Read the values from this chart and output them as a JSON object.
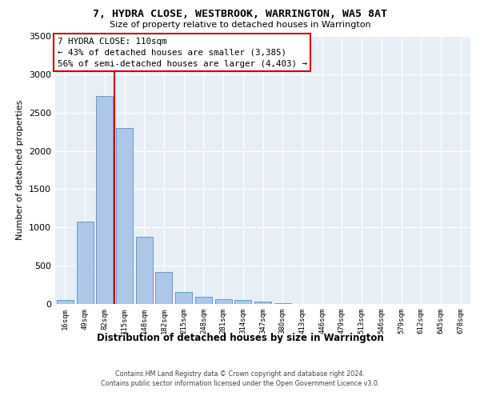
{
  "title": "7, HYDRA CLOSE, WESTBROOK, WARRINGTON, WA5 8AT",
  "subtitle": "Size of property relative to detached houses in Warrington",
  "xlabel": "Distribution of detached houses by size in Warrington",
  "ylabel": "Number of detached properties",
  "categories": [
    "16sqm",
    "49sqm",
    "82sqm",
    "115sqm",
    "148sqm",
    "182sqm",
    "215sqm",
    "248sqm",
    "281sqm",
    "314sqm",
    "347sqm",
    "380sqm",
    "413sqm",
    "446sqm",
    "479sqm",
    "513sqm",
    "546sqm",
    "579sqm",
    "612sqm",
    "645sqm",
    "678sqm"
  ],
  "values": [
    50,
    1080,
    2720,
    2300,
    880,
    420,
    160,
    90,
    60,
    50,
    30,
    10,
    5,
    2,
    1,
    0,
    0,
    0,
    0,
    0,
    0
  ],
  "bar_color": "#aec6e8",
  "bar_edge_color": "#5a8fc2",
  "line_color": "#cc0000",
  "anno_edge_color": "#cc0000",
  "anno_bg": "#ffffff",
  "ylim_max": 3500,
  "yticks": [
    0,
    500,
    1000,
    1500,
    2000,
    2500,
    3000,
    3500
  ],
  "background_color": "#e8eef5",
  "red_line_bin": 2,
  "property_label": "7 HYDRA CLOSE: 110sqm",
  "anno_line1": "← 43% of detached houses are smaller (3,385)",
  "anno_line2": "56% of semi-detached houses are larger (4,403) →",
  "footer1": "Contains HM Land Registry data © Crown copyright and database right 2024.",
  "footer2": "Contains public sector information licensed under the Open Government Licence v3.0."
}
